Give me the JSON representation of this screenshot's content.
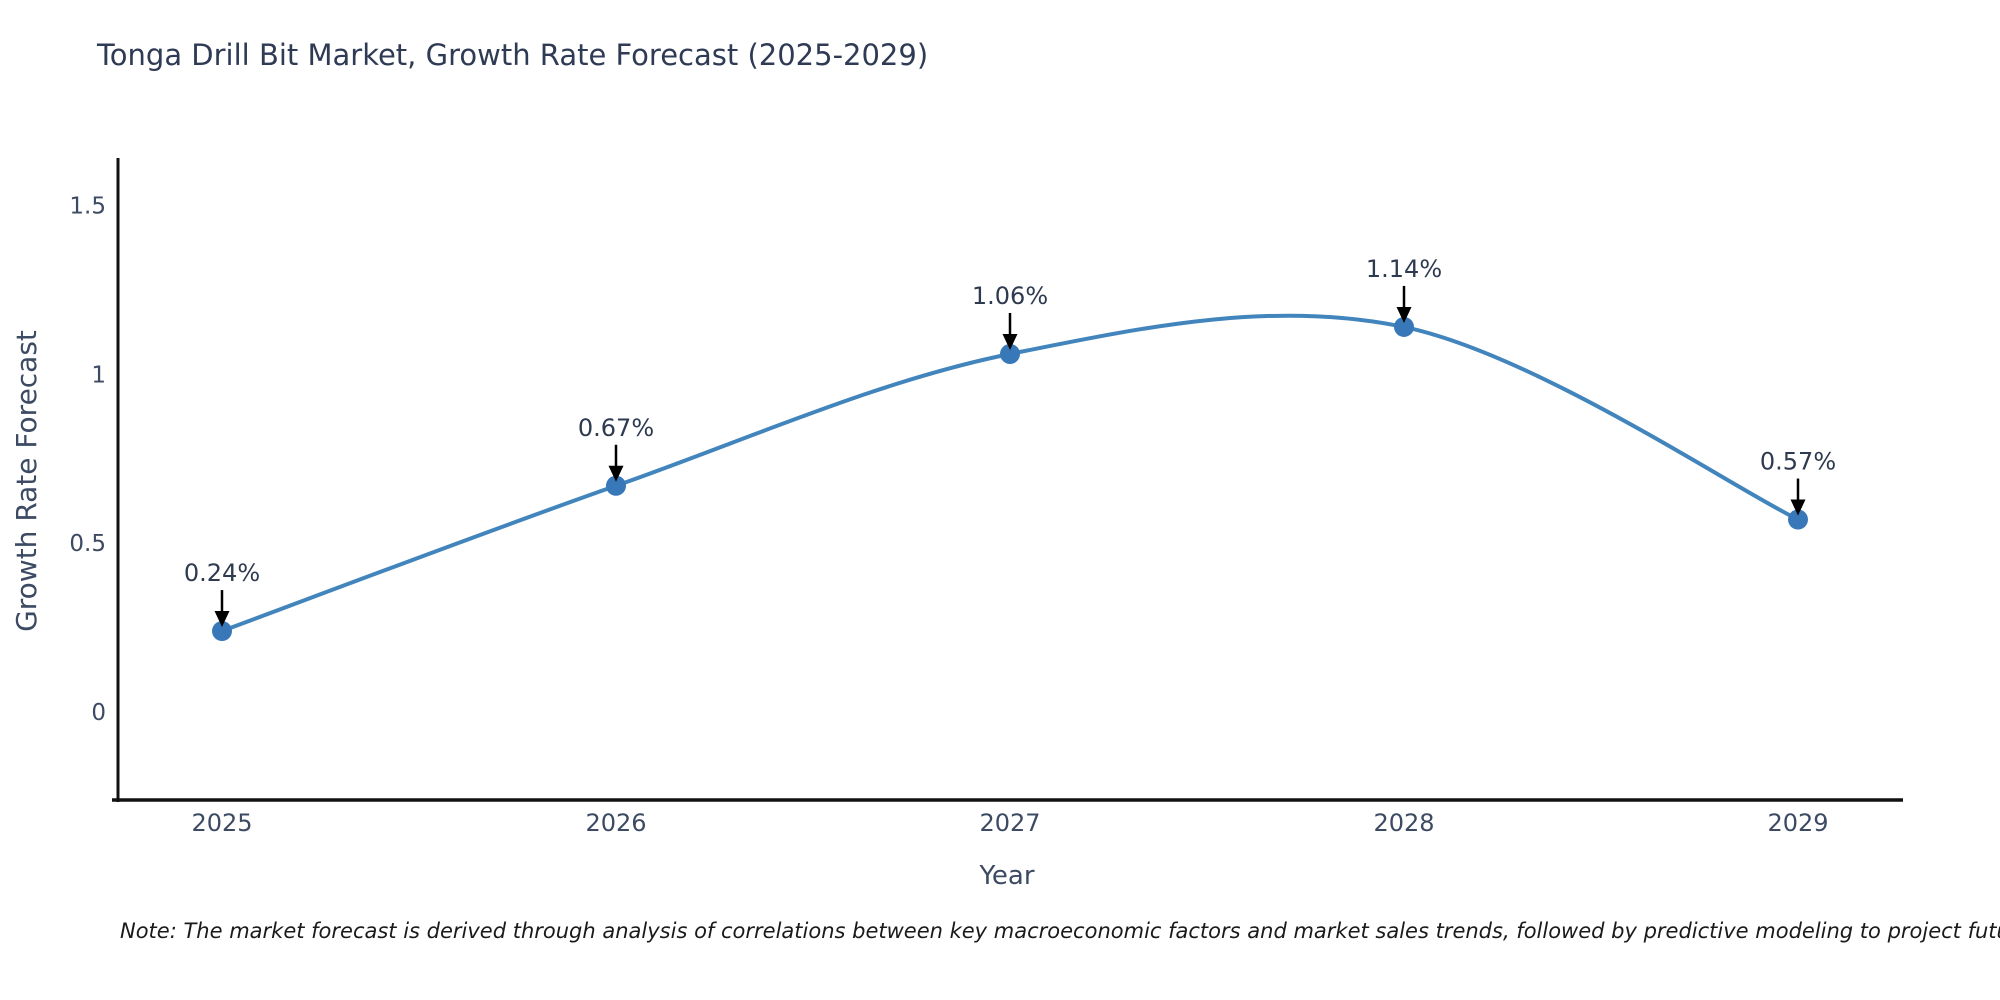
{
  "chart_data": {
    "type": "line",
    "title": "Tonga Drill Bit Market, Growth Rate Forecast (2025-2029)",
    "xlabel": "Year",
    "ylabel": "Growth Rate Forecast",
    "categories": [
      "2025",
      "2026",
      "2027",
      "2028",
      "2029"
    ],
    "values": [
      0.24,
      0.67,
      1.06,
      1.14,
      0.57
    ],
    "point_labels": [
      "0.24%",
      "0.67%",
      "1.06%",
      "1.14%",
      "0.57%"
    ],
    "ytick_labels": [
      "0",
      "0.5",
      "1",
      "1.5"
    ],
    "ytick_values": [
      0,
      0.5,
      1,
      1.5
    ],
    "ylim": [
      -0.26,
      1.64
    ],
    "grid": false,
    "legend": "none",
    "annotation_style": "value label with downward black arrow onto each marker"
  },
  "colors": {
    "background": "#ffffff",
    "line": "#4285bd",
    "marker": "#3878b8",
    "arrow": "#000000",
    "axis": "#111111",
    "title_text": "#2f3b54",
    "label_text": "#3d4a63",
    "annotation_text": "#2e3a50",
    "note_text": "#1a1a1a"
  },
  "note": {
    "text": "Note: The market forecast is derived through analysis of correlations between key macroeconomic factors and market sales trends, followed by predictive modeling to project future sales"
  }
}
